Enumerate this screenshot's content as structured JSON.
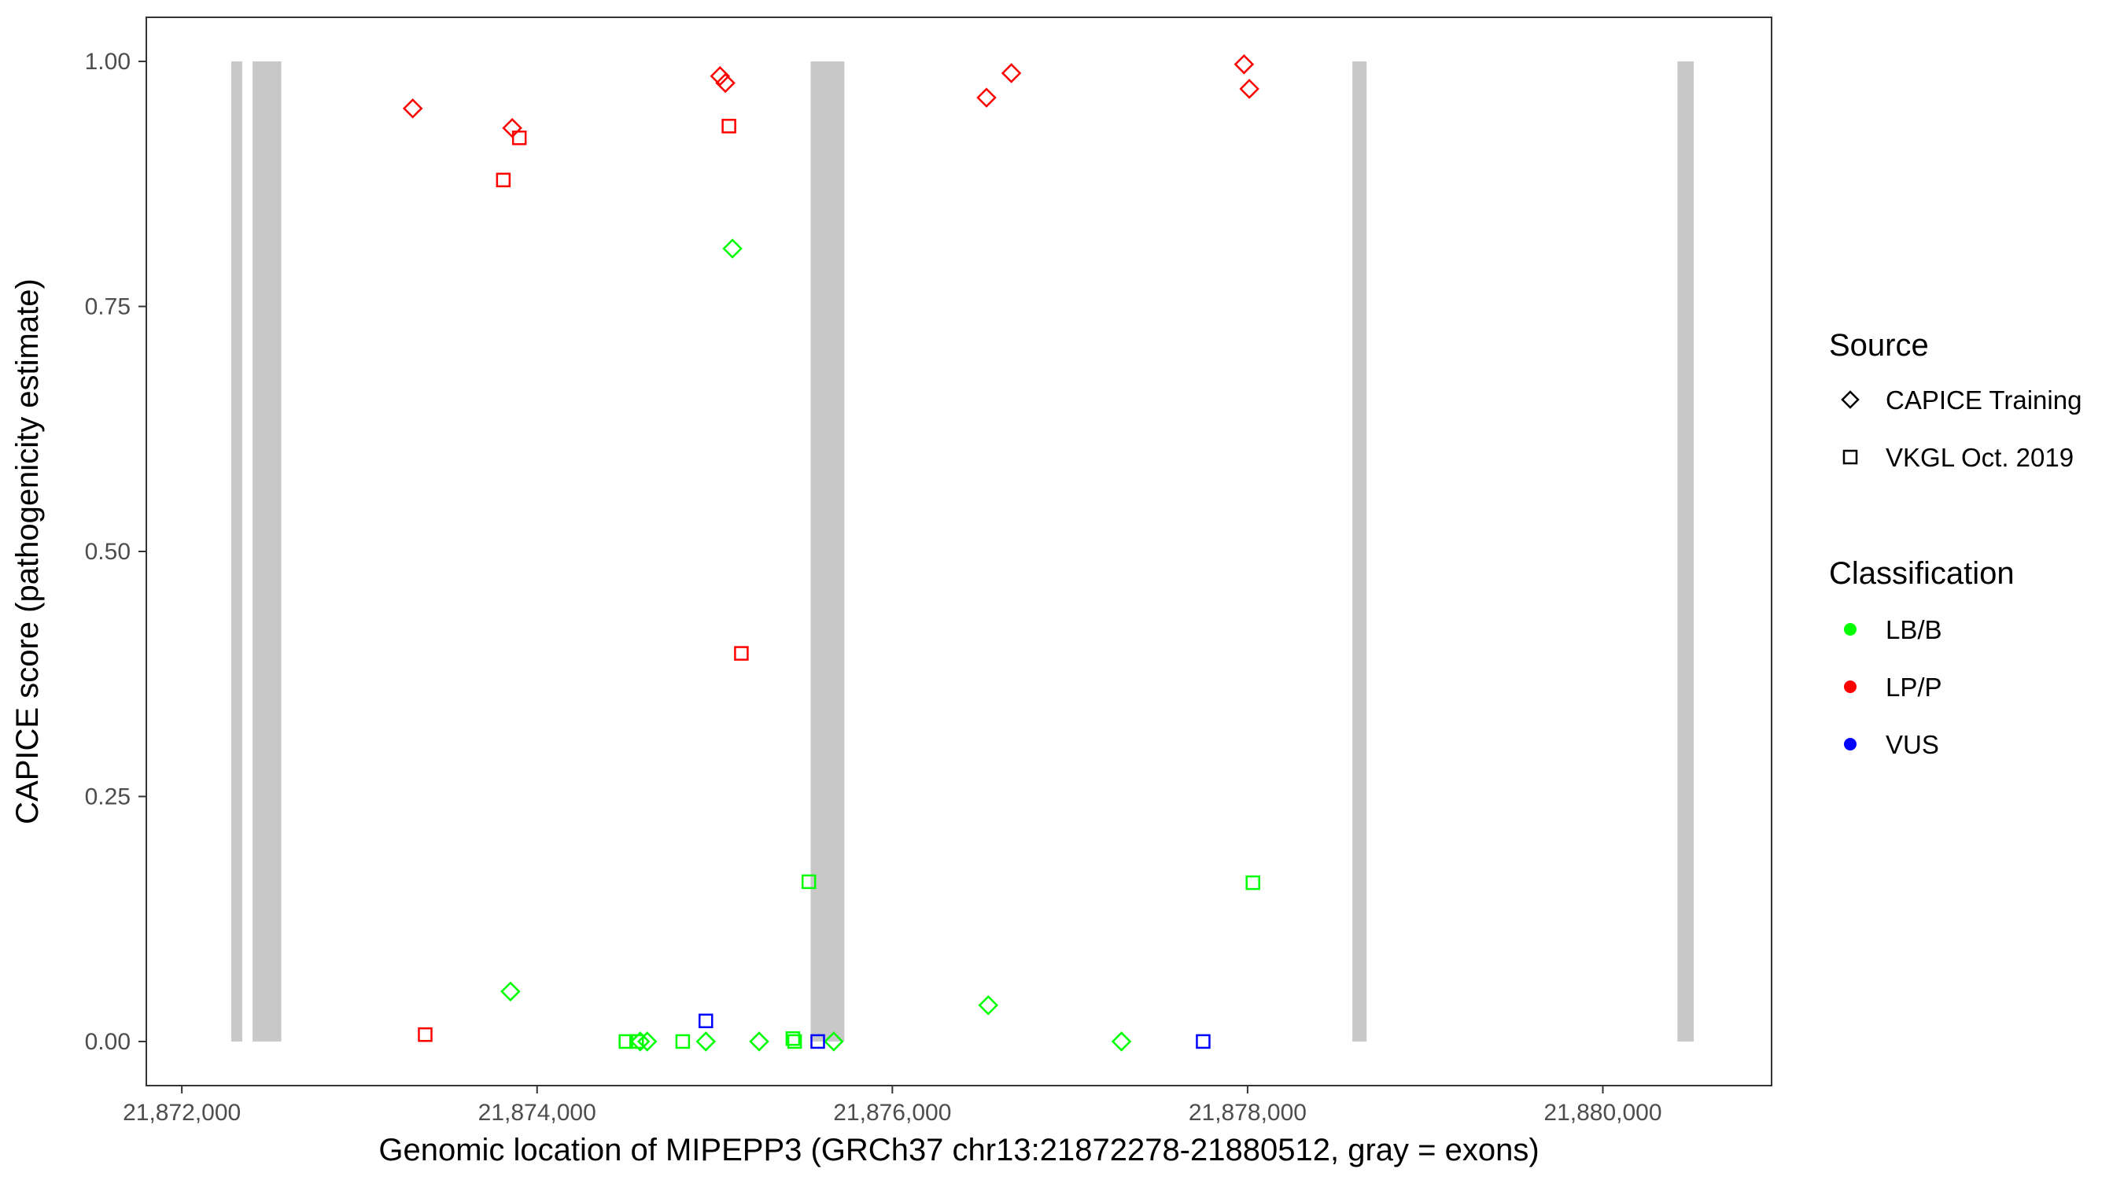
{
  "chart_data": {
    "type": "scatter",
    "title": "",
    "xlabel": "Genomic location of MIPEPP3 (GRCh37 chr13:21872278-21880512, gray = exons)",
    "ylabel": "CAPICE score (pathogenicity estimate)",
    "xlim": [
      21871800,
      21880950
    ],
    "ylim": [
      -0.045,
      1.045
    ],
    "x_ticks": [
      21872000,
      21874000,
      21876000,
      21878000,
      21880000
    ],
    "x_tick_labels": [
      "21,872,000",
      "21,874,000",
      "21,876,000",
      "21,878,000",
      "21,880,000"
    ],
    "y_ticks": [
      0,
      0.25,
      0.5,
      0.75,
      1.0
    ],
    "y_tick_labels": [
      "0.00",
      "0.25",
      "0.50",
      "0.75",
      "1.00"
    ],
    "grid": false,
    "exon_color": "#c8c8c8",
    "exons": [
      [
        21872278,
        21872340
      ],
      [
        21872398,
        21872560
      ],
      [
        21875540,
        21875730
      ],
      [
        21878590,
        21878670
      ],
      [
        21880420,
        21880512
      ]
    ],
    "colors": {
      "LB/B": "#00ff00",
      "LP/P": "#ff0000",
      "VUS": "#0000ff"
    },
    "shapes": {
      "CAPICE Training": "diamond",
      "VKGL Oct. 2019": "square"
    },
    "points": [
      {
        "x": 21873300,
        "y": 0.952,
        "source": "CAPICE Training",
        "classification": "LP/P"
      },
      {
        "x": 21873860,
        "y": 0.932,
        "source": "CAPICE Training",
        "classification": "LP/P"
      },
      {
        "x": 21875030,
        "y": 0.985,
        "source": "CAPICE Training",
        "classification": "LP/P"
      },
      {
        "x": 21875060,
        "y": 0.978,
        "source": "CAPICE Training",
        "classification": "LP/P"
      },
      {
        "x": 21876530,
        "y": 0.963,
        "source": "CAPICE Training",
        "classification": "LP/P"
      },
      {
        "x": 21876670,
        "y": 0.988,
        "source": "CAPICE Training",
        "classification": "LP/P"
      },
      {
        "x": 21877980,
        "y": 0.997,
        "source": "CAPICE Training",
        "classification": "LP/P"
      },
      {
        "x": 21878010,
        "y": 0.972,
        "source": "CAPICE Training",
        "classification": "LP/P"
      },
      {
        "x": 21873810,
        "y": 0.879,
        "source": "VKGL Oct. 2019",
        "classification": "LP/P"
      },
      {
        "x": 21873900,
        "y": 0.922,
        "source": "VKGL Oct. 2019",
        "classification": "LP/P"
      },
      {
        "x": 21875080,
        "y": 0.934,
        "source": "VKGL Oct. 2019",
        "classification": "LP/P"
      },
      {
        "x": 21875150,
        "y": 0.396,
        "source": "VKGL Oct. 2019",
        "classification": "LP/P"
      },
      {
        "x": 21873370,
        "y": 0.007,
        "source": "VKGL Oct. 2019",
        "classification": "LP/P"
      },
      {
        "x": 21875100,
        "y": 0.809,
        "source": "CAPICE Training",
        "classification": "LB/B"
      },
      {
        "x": 21873850,
        "y": 0.051,
        "source": "CAPICE Training",
        "classification": "LB/B"
      },
      {
        "x": 21874580,
        "y": 0.0,
        "source": "CAPICE Training",
        "classification": "LB/B"
      },
      {
        "x": 21874620,
        "y": 0.0,
        "source": "CAPICE Training",
        "classification": "LB/B"
      },
      {
        "x": 21874950,
        "y": 0.0,
        "source": "CAPICE Training",
        "classification": "LB/B"
      },
      {
        "x": 21875250,
        "y": 0.0,
        "source": "CAPICE Training",
        "classification": "LB/B"
      },
      {
        "x": 21875670,
        "y": 0.0,
        "source": "CAPICE Training",
        "classification": "LB/B"
      },
      {
        "x": 21876540,
        "y": 0.037,
        "source": "CAPICE Training",
        "classification": "LB/B"
      },
      {
        "x": 21877290,
        "y": 0.0,
        "source": "CAPICE Training",
        "classification": "LB/B"
      },
      {
        "x": 21875530,
        "y": 0.163,
        "source": "VKGL Oct. 2019",
        "classification": "LB/B"
      },
      {
        "x": 21878030,
        "y": 0.162,
        "source": "VKGL Oct. 2019",
        "classification": "LB/B"
      },
      {
        "x": 21874500,
        "y": 0.0,
        "source": "VKGL Oct. 2019",
        "classification": "LB/B"
      },
      {
        "x": 21874560,
        "y": 0.0,
        "source": "VKGL Oct. 2019",
        "classification": "LB/B"
      },
      {
        "x": 21874820,
        "y": 0.0,
        "source": "VKGL Oct. 2019",
        "classification": "LB/B"
      },
      {
        "x": 21875440,
        "y": 0.003,
        "source": "VKGL Oct. 2019",
        "classification": "LB/B"
      },
      {
        "x": 21875450,
        "y": 0.0,
        "source": "VKGL Oct. 2019",
        "classification": "LB/B"
      },
      {
        "x": 21874950,
        "y": 0.021,
        "source": "VKGL Oct. 2019",
        "classification": "VUS"
      },
      {
        "x": 21875580,
        "y": 0.0,
        "source": "VKGL Oct. 2019",
        "classification": "VUS"
      },
      {
        "x": 21877750,
        "y": 0.0,
        "source": "VKGL Oct. 2019",
        "classification": "VUS"
      }
    ],
    "legend": {
      "placement": "right",
      "source_title": "Source",
      "source_entries": [
        {
          "label": "CAPICE Training",
          "shape": "diamond"
        },
        {
          "label": "VKGL Oct. 2019",
          "shape": "square"
        }
      ],
      "classification_title": "Classification",
      "classification_entries": [
        {
          "label": "LB/B",
          "color": "#00ff00"
        },
        {
          "label": "LP/P",
          "color": "#ff0000"
        },
        {
          "label": "VUS",
          "color": "#0000ff"
        }
      ]
    }
  }
}
